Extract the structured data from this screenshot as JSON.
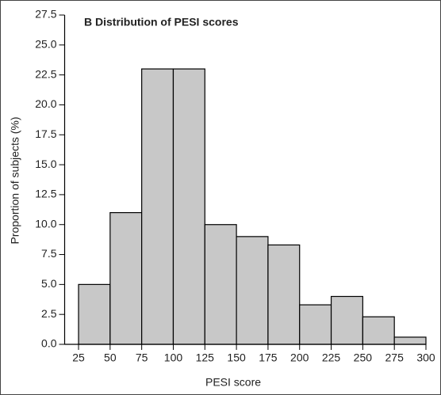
{
  "chart_data": {
    "type": "histogram",
    "title": "B  Distribution of PESI scores",
    "xlabel": "PESI score",
    "ylabel": "Proportion of subjects (%)",
    "bins": [
      25,
      50,
      75,
      100,
      125,
      150,
      175,
      200,
      225,
      250,
      275,
      300
    ],
    "values": [
      5.0,
      11.0,
      23.0,
      23.0,
      10.0,
      9.0,
      8.3,
      3.3,
      4.0,
      2.3,
      0.6
    ],
    "color": "#c8c8c8",
    "xlim": [
      14,
      300
    ],
    "xticks": [
      25,
      50,
      75,
      100,
      125,
      150,
      175,
      200,
      225,
      250,
      275,
      300
    ],
    "ylim": [
      0,
      27.5
    ],
    "yticks": [
      {
        "value": 0,
        "label": "0.0"
      },
      2.5,
      {
        "value": 5,
        "label": "5.0"
      },
      7.5,
      {
        "value": 10,
        "label": "10.0"
      },
      12.5,
      {
        "value": 15,
        "label": "15.0"
      },
      17.5,
      {
        "value": 20,
        "label": "20.0"
      },
      22.5,
      {
        "value": 25,
        "label": "25.0"
      },
      27.5
    ]
  }
}
